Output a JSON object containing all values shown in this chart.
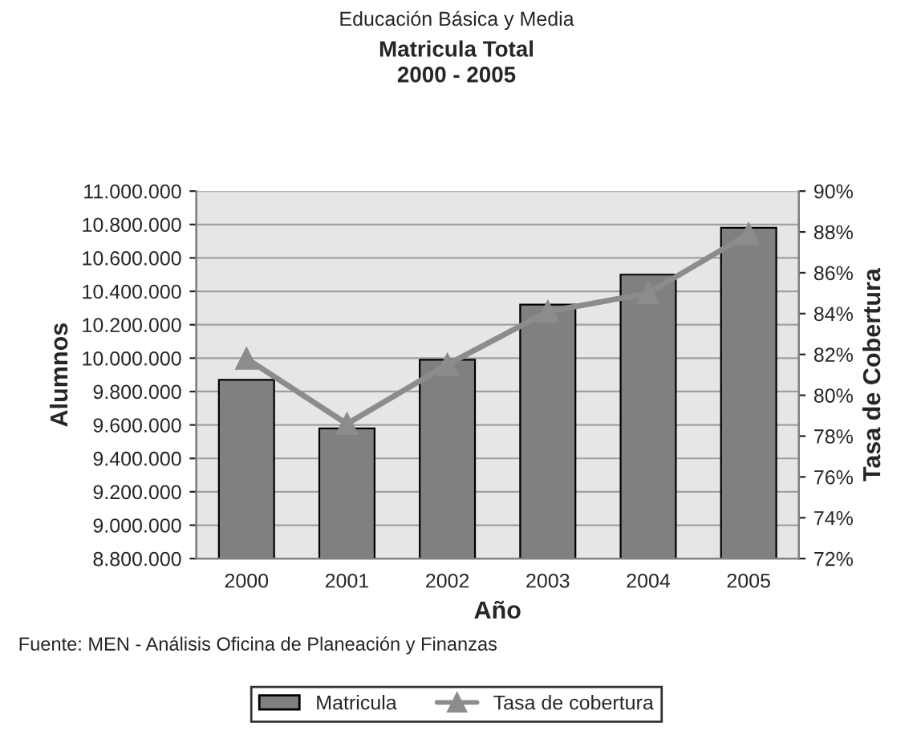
{
  "chart_data": {
    "type": "bar",
    "title": "Matricula Total\n2000 - 2005",
    "subtitle": "Educación Básica y Media",
    "xlabel": "Año",
    "ylabel": "Alumnos",
    "y2label": "Tasa de Cobertura",
    "categories": [
      "2000",
      "2001",
      "2002",
      "2003",
      "2004",
      "2005"
    ],
    "series": [
      {
        "name": "Matricula",
        "color": "#808080",
        "values": [
          9870000,
          9580000,
          9990000,
          10320000,
          10500000,
          10780000
        ]
      },
      {
        "name": "Tasa de cobertura",
        "type": "line",
        "axis": "y2",
        "color": "#8c8c8c",
        "marker": "triangle",
        "values": [
          81.8,
          78.6,
          81.5,
          84.1,
          85.0,
          87.9
        ]
      }
    ],
    "ylim": [
      8800000,
      11000000
    ],
    "yticks": [
      {
        "value": 8800000,
        "label": "8.800.000"
      },
      {
        "value": 9000000,
        "label": "9.000.000"
      },
      {
        "value": 9200000,
        "label": "9.200.000"
      },
      {
        "value": 9400000,
        "label": "9.400.000"
      },
      {
        "value": 9600000,
        "label": "9.600.000"
      },
      {
        "value": 9800000,
        "label": "9.800.000"
      },
      {
        "value": 10000000,
        "label": "10.000.000"
      },
      {
        "value": 10200000,
        "label": "10.200.000"
      },
      {
        "value": 10400000,
        "label": "10.400.000"
      },
      {
        "value": 10600000,
        "label": "10.600.000"
      },
      {
        "value": 10800000,
        "label": "10.800.000"
      },
      {
        "value": 11000000,
        "label": "11.000.000"
      }
    ],
    "y2lim": [
      72,
      90
    ],
    "y2ticks": [
      {
        "value": 72,
        "label": "72%"
      },
      {
        "value": 74,
        "label": "74%"
      },
      {
        "value": 76,
        "label": "76%"
      },
      {
        "value": 78,
        "label": "78%"
      },
      {
        "value": 80,
        "label": "80%"
      },
      {
        "value": 82,
        "label": "82%"
      },
      {
        "value": 84,
        "label": "84%"
      },
      {
        "value": 86,
        "label": "86%"
      },
      {
        "value": 88,
        "label": "88%"
      },
      {
        "value": 90,
        "label": "90%"
      }
    ],
    "grid": "y",
    "legend": "bottom",
    "annotations": [
      "Fuente: MEN - Análisis Oficina de Planeación y Finanzas"
    ]
  }
}
